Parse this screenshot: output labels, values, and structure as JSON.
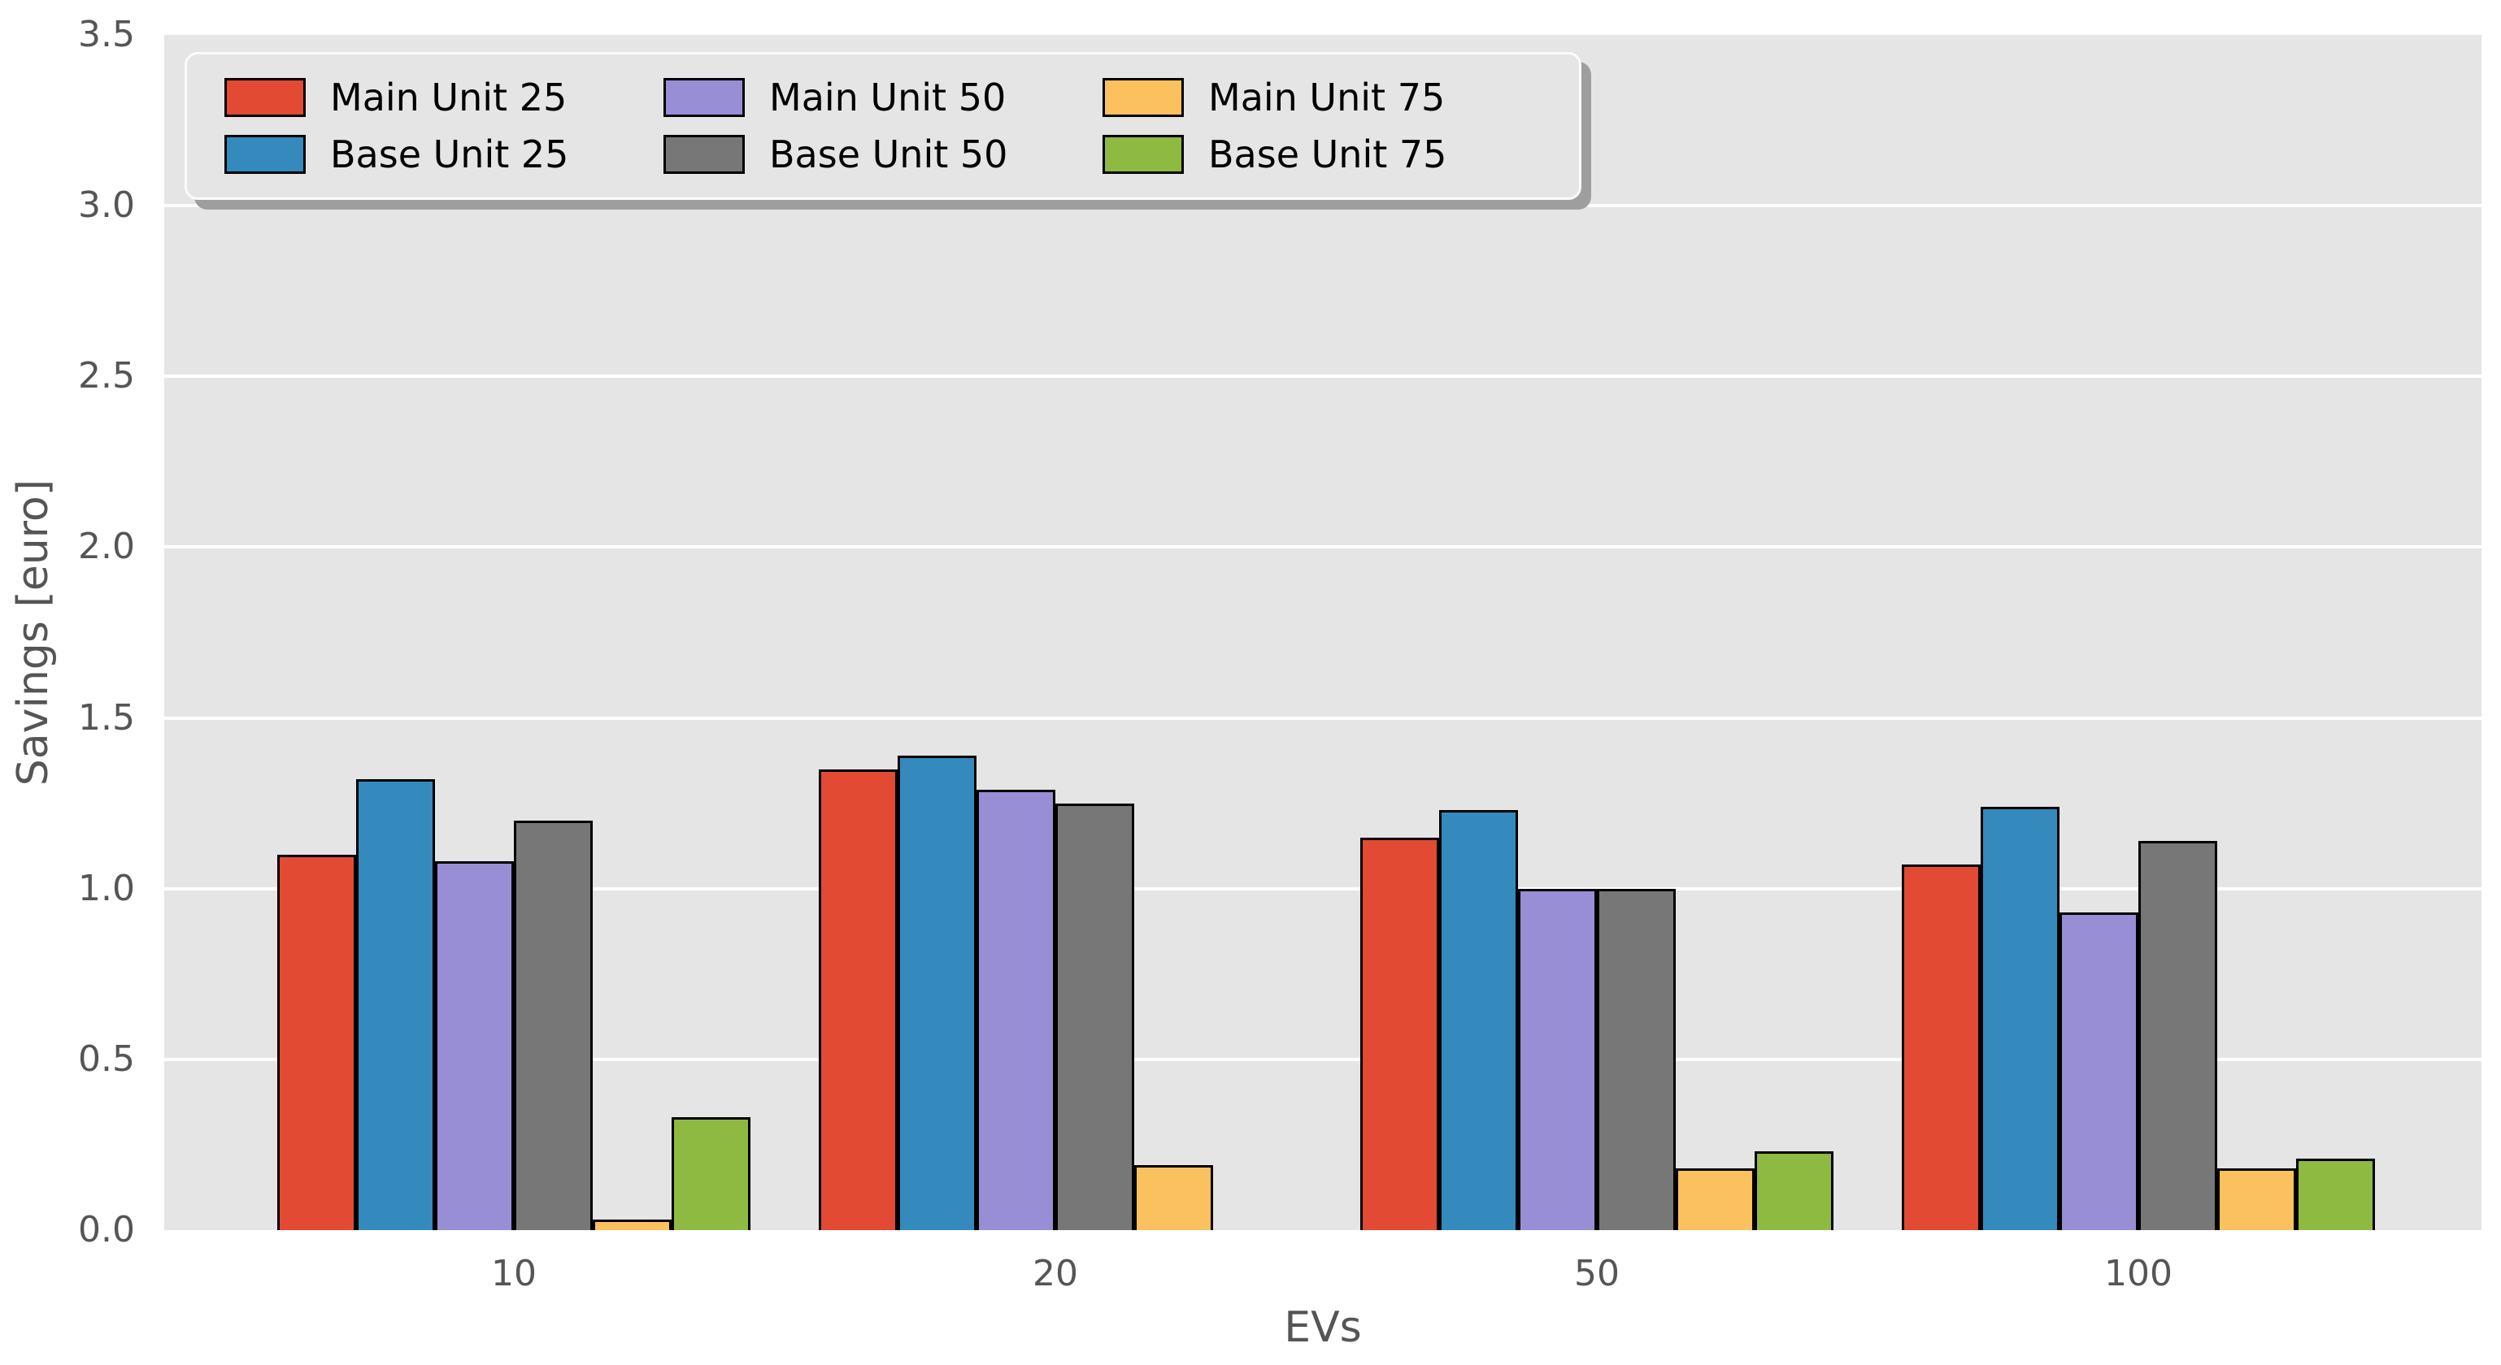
{
  "figure": {
    "background_color": "#ffffff",
    "axes_background_color": "#e5e5e5",
    "grid_color": "#ffffff",
    "tick_text_color": "#555555",
    "legend_text_color": "#000000",
    "bar_edge_color": "#000000"
  },
  "chart_data": {
    "type": "bar",
    "title": "",
    "xlabel": "EVs",
    "ylabel": "Savings [euro]",
    "categories": [
      "10",
      "20",
      "50",
      "100"
    ],
    "series": [
      {
        "name": "Main Unit 25",
        "color": "#E24A33",
        "values": [
          1.1,
          1.35,
          1.15,
          1.07
        ]
      },
      {
        "name": "Base Unit 25",
        "color": "#348ABD",
        "values": [
          1.32,
          1.39,
          1.23,
          1.24
        ]
      },
      {
        "name": "Main Unit 50",
        "color": "#988ED5",
        "values": [
          1.08,
          1.29,
          1.0,
          0.93
        ]
      },
      {
        "name": "Base Unit 50",
        "color": "#777777",
        "values": [
          1.2,
          1.25,
          1.0,
          1.14
        ]
      },
      {
        "name": "Main Unit 75",
        "color": "#FBC15E",
        "values": [
          0.03,
          0.19,
          0.18,
          0.18
        ]
      },
      {
        "name": "Base Unit 75",
        "color": "#8EBA42",
        "values": [
          0.33,
          0.0,
          0.23,
          0.21
        ]
      }
    ],
    "ylim": [
      0,
      3.5
    ],
    "yticks": [
      "0.0",
      "0.5",
      "1.0",
      "1.5",
      "2.0",
      "2.5",
      "3.0",
      "3.5"
    ],
    "grid": true,
    "legend_position": "upper left",
    "legend_columns": 3
  }
}
